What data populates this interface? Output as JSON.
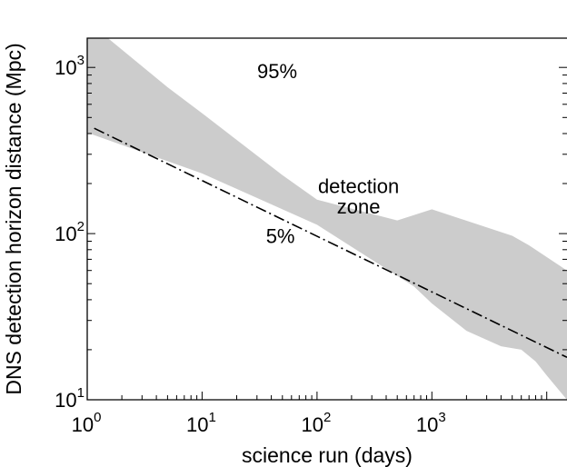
{
  "chart_data": {
    "type": "area",
    "xlabel": "science run (days)",
    "ylabel": "DNS detection horizon distance (Mpc)",
    "xscale": "log",
    "yscale": "log",
    "xlim": [
      1,
      15000
    ],
    "ylim": [
      10,
      1500
    ],
    "x_ticks": [
      {
        "value": 1,
        "base": "10",
        "exp": "0"
      },
      {
        "value": 10,
        "base": "10",
        "exp": "1"
      },
      {
        "value": 100,
        "base": "10",
        "exp": "2"
      },
      {
        "value": 1000,
        "base": "10",
        "exp": "3"
      }
    ],
    "y_ticks": [
      {
        "value": 10,
        "base": "10",
        "exp": "1"
      },
      {
        "value": 100,
        "base": "10",
        "exp": "2"
      },
      {
        "value": 1000,
        "base": "10",
        "exp": "3"
      }
    ],
    "band": {
      "fill_color": "#cccccc",
      "upper": {
        "x": [
          1,
          2,
          5,
          10,
          50,
          100,
          500,
          1000,
          5000,
          7000,
          15000
        ],
        "y": [
          1900,
          1280,
          760,
          530,
          225,
          160,
          120,
          140,
          97,
          85,
          60
        ]
      },
      "lower": {
        "x": [
          1,
          10,
          100,
          700,
          1000,
          2000,
          4000,
          6000,
          8000,
          10000,
          15000
        ],
        "y": [
          405,
          230,
          113,
          48,
          38,
          26,
          21,
          20,
          17,
          14,
          10
        ]
      }
    },
    "line": {
      "style": "dash-dot",
      "color": "#000000",
      "x": [
        1.15,
        15000
      ],
      "y": [
        430,
        18
      ]
    },
    "annotations": [
      {
        "text": "95%",
        "x": 45,
        "y": 860
      },
      {
        "text": "detection",
        "x": 230,
        "y": 175
      },
      {
        "text": "zone",
        "x": 230,
        "y": 132
      },
      {
        "text": "5%",
        "x": 48,
        "y": 88
      }
    ]
  }
}
